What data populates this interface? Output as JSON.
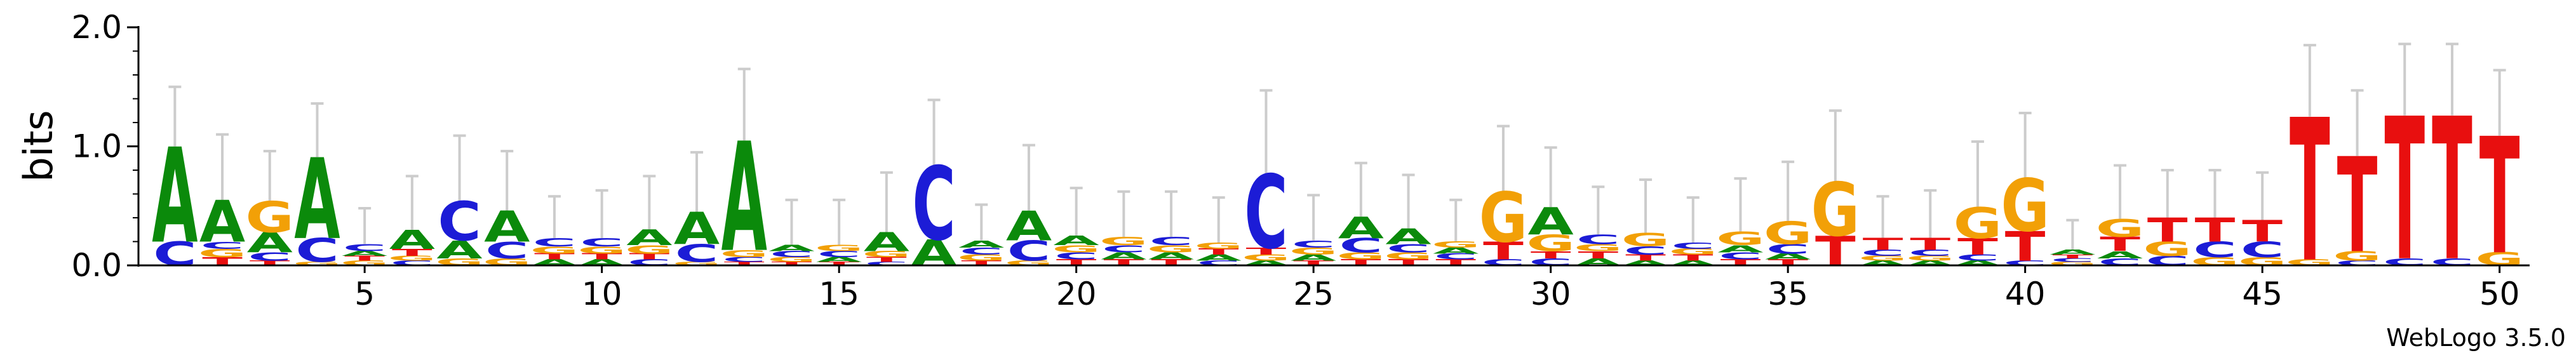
{
  "chart_data": {
    "type": "sequence-logo",
    "ylabel": "bits",
    "ylim": [
      0,
      2.0
    ],
    "y_ticks": [
      "0.0",
      "1.0",
      "2.0"
    ],
    "x_ticks": [
      5,
      10,
      15,
      20,
      25,
      30,
      35,
      40,
      45,
      50
    ],
    "credit": "WebLogo 3.5.0",
    "colors": {
      "A": "#0b8a0b",
      "C": "#1c1cd6",
      "G": "#f2a007",
      "T": "#e80f0f",
      "error_bar": "#cccccc"
    },
    "positions": [
      {
        "pos": 1,
        "error": 0.5,
        "letters": [
          {
            "base": "C",
            "height": 0.2
          },
          {
            "base": "A",
            "height": 0.8
          }
        ]
      },
      {
        "pos": 2,
        "error": 0.55,
        "letters": [
          {
            "base": "T",
            "height": 0.07
          },
          {
            "base": "G",
            "height": 0.07
          },
          {
            "base": "C",
            "height": 0.06
          },
          {
            "base": "A",
            "height": 0.35
          }
        ]
      },
      {
        "pos": 3,
        "error": 0.42,
        "letters": [
          {
            "base": "T",
            "height": 0.04
          },
          {
            "base": "C",
            "height": 0.07
          },
          {
            "base": "A",
            "height": 0.17
          },
          {
            "base": "G",
            "height": 0.26
          }
        ]
      },
      {
        "pos": 4,
        "error": 0.45,
        "letters": [
          {
            "base": "G",
            "height": 0.03
          },
          {
            "base": "C",
            "height": 0.2
          },
          {
            "base": "A",
            "height": 0.68
          }
        ]
      },
      {
        "pos": 5,
        "error": 0.3,
        "letters": [
          {
            "base": "G",
            "height": 0.04
          },
          {
            "base": "T",
            "height": 0.04
          },
          {
            "base": "A",
            "height": 0.04
          },
          {
            "base": "C",
            "height": 0.06
          }
        ]
      },
      {
        "pos": 6,
        "error": 0.45,
        "letters": [
          {
            "base": "C",
            "height": 0.04
          },
          {
            "base": "G",
            "height": 0.04
          },
          {
            "base": "T",
            "height": 0.06
          },
          {
            "base": "A",
            "height": 0.16
          }
        ]
      },
      {
        "pos": 7,
        "error": 0.55,
        "letters": [
          {
            "base": "G",
            "height": 0.06
          },
          {
            "base": "A",
            "height": 0.15
          },
          {
            "base": "C",
            "height": 0.33
          }
        ]
      },
      {
        "pos": 8,
        "error": 0.5,
        "letters": [
          {
            "base": "G",
            "height": 0.06
          },
          {
            "base": "C",
            "height": 0.14
          },
          {
            "base": "A",
            "height": 0.26
          }
        ]
      },
      {
        "pos": 9,
        "error": 0.35,
        "letters": [
          {
            "base": "A",
            "height": 0.05
          },
          {
            "base": "T",
            "height": 0.05
          },
          {
            "base": "G",
            "height": 0.06
          },
          {
            "base": "C",
            "height": 0.07
          }
        ]
      },
      {
        "pos": 10,
        "error": 0.4,
        "letters": [
          {
            "base": "A",
            "height": 0.05
          },
          {
            "base": "T",
            "height": 0.05
          },
          {
            "base": "G",
            "height": 0.06
          },
          {
            "base": "C",
            "height": 0.07
          }
        ]
      },
      {
        "pos": 11,
        "error": 0.45,
        "letters": [
          {
            "base": "C",
            "height": 0.05
          },
          {
            "base": "T",
            "height": 0.05
          },
          {
            "base": "G",
            "height": 0.07
          },
          {
            "base": "A",
            "height": 0.13
          }
        ]
      },
      {
        "pos": 12,
        "error": 0.5,
        "letters": [
          {
            "base": "G",
            "height": 0.03
          },
          {
            "base": "C",
            "height": 0.15
          },
          {
            "base": "A",
            "height": 0.27
          }
        ]
      },
      {
        "pos": 13,
        "error": 0.6,
        "letters": [
          {
            "base": "T",
            "height": 0.03
          },
          {
            "base": "C",
            "height": 0.04
          },
          {
            "base": "G",
            "height": 0.06
          },
          {
            "base": "A",
            "height": 0.92
          }
        ]
      },
      {
        "pos": 14,
        "error": 0.38,
        "letters": [
          {
            "base": "T",
            "height": 0.03
          },
          {
            "base": "G",
            "height": 0.04
          },
          {
            "base": "C",
            "height": 0.05
          },
          {
            "base": "A",
            "height": 0.05
          }
        ]
      },
      {
        "pos": 15,
        "error": 0.38,
        "letters": [
          {
            "base": "T",
            "height": 0.03
          },
          {
            "base": "A",
            "height": 0.04
          },
          {
            "base": "C",
            "height": 0.05
          },
          {
            "base": "G",
            "height": 0.05
          }
        ]
      },
      {
        "pos": 16,
        "error": 0.5,
        "letters": [
          {
            "base": "C",
            "height": 0.03
          },
          {
            "base": "T",
            "height": 0.04
          },
          {
            "base": "G",
            "height": 0.05
          },
          {
            "base": "A",
            "height": 0.16
          }
        ]
      },
      {
        "pos": 17,
        "error": 0.55,
        "letters": [
          {
            "base": "A",
            "height": 0.22
          },
          {
            "base": "C",
            "height": 0.62
          }
        ]
      },
      {
        "pos": 18,
        "error": 0.3,
        "letters": [
          {
            "base": "T",
            "height": 0.04
          },
          {
            "base": "G",
            "height": 0.05
          },
          {
            "base": "C",
            "height": 0.06
          },
          {
            "base": "A",
            "height": 0.06
          }
        ]
      },
      {
        "pos": 19,
        "error": 0.55,
        "letters": [
          {
            "base": "G",
            "height": 0.04
          },
          {
            "base": "C",
            "height": 0.17
          },
          {
            "base": "A",
            "height": 0.25
          }
        ]
      },
      {
        "pos": 20,
        "error": 0.4,
        "letters": [
          {
            "base": "T",
            "height": 0.05
          },
          {
            "base": "C",
            "height": 0.06
          },
          {
            "base": "G",
            "height": 0.06
          },
          {
            "base": "A",
            "height": 0.08
          }
        ]
      },
      {
        "pos": 21,
        "error": 0.38,
        "letters": [
          {
            "base": "T",
            "height": 0.05
          },
          {
            "base": "A",
            "height": 0.06
          },
          {
            "base": "C",
            "height": 0.06
          },
          {
            "base": "G",
            "height": 0.07
          }
        ]
      },
      {
        "pos": 22,
        "error": 0.38,
        "letters": [
          {
            "base": "T",
            "height": 0.05
          },
          {
            "base": "A",
            "height": 0.06
          },
          {
            "base": "G",
            "height": 0.06
          },
          {
            "base": "C",
            "height": 0.07
          }
        ]
      },
      {
        "pos": 23,
        "error": 0.38,
        "letters": [
          {
            "base": "C",
            "height": 0.04
          },
          {
            "base": "A",
            "height": 0.05
          },
          {
            "base": "T",
            "height": 0.05
          },
          {
            "base": "G",
            "height": 0.05
          }
        ]
      },
      {
        "pos": 24,
        "error": 0.7,
        "letters": [
          {
            "base": "A",
            "height": 0.04
          },
          {
            "base": "G",
            "height": 0.05
          },
          {
            "base": "T",
            "height": 0.06
          },
          {
            "base": "C",
            "height": 0.62
          }
        ]
      },
      {
        "pos": 25,
        "error": 0.38,
        "letters": [
          {
            "base": "T",
            "height": 0.04
          },
          {
            "base": "A",
            "height": 0.05
          },
          {
            "base": "G",
            "height": 0.06
          },
          {
            "base": "C",
            "height": 0.06
          }
        ]
      },
      {
        "pos": 26,
        "error": 0.45,
        "letters": [
          {
            "base": "T",
            "height": 0.05
          },
          {
            "base": "G",
            "height": 0.06
          },
          {
            "base": "C",
            "height": 0.12
          },
          {
            "base": "A",
            "height": 0.18
          }
        ]
      },
      {
        "pos": 27,
        "error": 0.45,
        "letters": [
          {
            "base": "T",
            "height": 0.05
          },
          {
            "base": "G",
            "height": 0.06
          },
          {
            "base": "C",
            "height": 0.07
          },
          {
            "base": "A",
            "height": 0.13
          }
        ]
      },
      {
        "pos": 28,
        "error": 0.35,
        "letters": [
          {
            "base": "T",
            "height": 0.05
          },
          {
            "base": "C",
            "height": 0.05
          },
          {
            "base": "A",
            "height": 0.05
          },
          {
            "base": "G",
            "height": 0.05
          }
        ]
      },
      {
        "pos": 29,
        "error": 0.55,
        "letters": [
          {
            "base": "C",
            "height": 0.05
          },
          {
            "base": "T",
            "height": 0.15
          },
          {
            "base": "G",
            "height": 0.42
          }
        ]
      },
      {
        "pos": 30,
        "error": 0.5,
        "letters": [
          {
            "base": "C",
            "height": 0.06
          },
          {
            "base": "T",
            "height": 0.06
          },
          {
            "base": "G",
            "height": 0.14
          },
          {
            "base": "A",
            "height": 0.23
          }
        ]
      },
      {
        "pos": 31,
        "error": 0.4,
        "letters": [
          {
            "base": "A",
            "height": 0.06
          },
          {
            "base": "T",
            "height": 0.06
          },
          {
            "base": "G",
            "height": 0.06
          },
          {
            "base": "C",
            "height": 0.08
          }
        ]
      },
      {
        "pos": 32,
        "error": 0.45,
        "letters": [
          {
            "base": "A",
            "height": 0.04
          },
          {
            "base": "T",
            "height": 0.05
          },
          {
            "base": "C",
            "height": 0.07
          },
          {
            "base": "G",
            "height": 0.11
          }
        ]
      },
      {
        "pos": 33,
        "error": 0.38,
        "letters": [
          {
            "base": "A",
            "height": 0.04
          },
          {
            "base": "T",
            "height": 0.05
          },
          {
            "base": "G",
            "height": 0.05
          },
          {
            "base": "C",
            "height": 0.05
          }
        ]
      },
      {
        "pos": 34,
        "error": 0.45,
        "letters": [
          {
            "base": "T",
            "height": 0.05
          },
          {
            "base": "C",
            "height": 0.06
          },
          {
            "base": "A",
            "height": 0.06
          },
          {
            "base": "G",
            "height": 0.11
          }
        ]
      },
      {
        "pos": 35,
        "error": 0.5,
        "letters": [
          {
            "base": "T",
            "height": 0.05
          },
          {
            "base": "A",
            "height": 0.05
          },
          {
            "base": "C",
            "height": 0.08
          },
          {
            "base": "G",
            "height": 0.19
          }
        ]
      },
      {
        "pos": 36,
        "error": 0.6,
        "letters": [
          {
            "base": "T",
            "height": 0.25
          },
          {
            "base": "G",
            "height": 0.45
          }
        ]
      },
      {
        "pos": 37,
        "error": 0.35,
        "letters": [
          {
            "base": "A",
            "height": 0.04
          },
          {
            "base": "G",
            "height": 0.04
          },
          {
            "base": "C",
            "height": 0.05
          },
          {
            "base": "T",
            "height": 0.1
          }
        ]
      },
      {
        "pos": 38,
        "error": 0.4,
        "letters": [
          {
            "base": "A",
            "height": 0.04
          },
          {
            "base": "G",
            "height": 0.04
          },
          {
            "base": "C",
            "height": 0.05
          },
          {
            "base": "T",
            "height": 0.1
          }
        ]
      },
      {
        "pos": 39,
        "error": 0.55,
        "letters": [
          {
            "base": "A",
            "height": 0.04
          },
          {
            "base": "C",
            "height": 0.05
          },
          {
            "base": "T",
            "height": 0.14
          },
          {
            "base": "G",
            "height": 0.26
          }
        ]
      },
      {
        "pos": 40,
        "error": 0.55,
        "letters": [
          {
            "base": "C",
            "height": 0.04
          },
          {
            "base": "T",
            "height": 0.25
          },
          {
            "base": "G",
            "height": 0.44
          }
        ]
      },
      {
        "pos": 41,
        "error": 0.25,
        "letters": [
          {
            "base": "G",
            "height": 0.03
          },
          {
            "base": "C",
            "height": 0.03
          },
          {
            "base": "T",
            "height": 0.03
          },
          {
            "base": "A",
            "height": 0.04
          }
        ]
      },
      {
        "pos": 42,
        "error": 0.45,
        "letters": [
          {
            "base": "C",
            "height": 0.06
          },
          {
            "base": "A",
            "height": 0.06
          },
          {
            "base": "T",
            "height": 0.12
          },
          {
            "base": "G",
            "height": 0.15
          }
        ]
      },
      {
        "pos": 43,
        "error": 0.4,
        "letters": [
          {
            "base": "C",
            "height": 0.08
          },
          {
            "base": "G",
            "height": 0.12
          },
          {
            "base": "T",
            "height": 0.2
          }
        ]
      },
      {
        "pos": 44,
        "error": 0.4,
        "letters": [
          {
            "base": "G",
            "height": 0.07
          },
          {
            "base": "C",
            "height": 0.13
          },
          {
            "base": "T",
            "height": 0.2
          }
        ]
      },
      {
        "pos": 45,
        "error": 0.4,
        "letters": [
          {
            "base": "G",
            "height": 0.07
          },
          {
            "base": "C",
            "height": 0.13
          },
          {
            "base": "T",
            "height": 0.18
          }
        ]
      },
      {
        "pos": 46,
        "error": 0.6,
        "letters": [
          {
            "base": "G",
            "height": 0.05
          },
          {
            "base": "T",
            "height": 1.2
          }
        ]
      },
      {
        "pos": 47,
        "error": 0.55,
        "letters": [
          {
            "base": "C",
            "height": 0.04
          },
          {
            "base": "G",
            "height": 0.08
          },
          {
            "base": "T",
            "height": 0.8
          }
        ]
      },
      {
        "pos": 48,
        "error": 0.6,
        "letters": [
          {
            "base": "C",
            "height": 0.06
          },
          {
            "base": "T",
            "height": 1.2
          }
        ]
      },
      {
        "pos": 49,
        "error": 0.6,
        "letters": [
          {
            "base": "C",
            "height": 0.06
          },
          {
            "base": "T",
            "height": 1.2
          }
        ]
      },
      {
        "pos": 50,
        "error": 0.55,
        "letters": [
          {
            "base": "G",
            "height": 0.11
          },
          {
            "base": "T",
            "height": 0.98
          }
        ]
      }
    ]
  }
}
